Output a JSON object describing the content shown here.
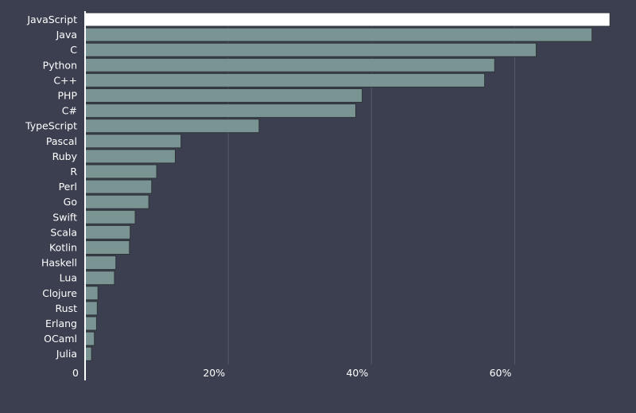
{
  "chart_data": {
    "type": "bar",
    "orientation": "horizontal",
    "title": "",
    "xlabel": "",
    "ylabel": "",
    "xlim": [
      0,
      73.5
    ],
    "x_ticks": [
      0,
      20,
      40,
      60
    ],
    "x_tick_labels": [
      "0",
      "20%",
      "40%",
      "60%"
    ],
    "grid": true,
    "categories": [
      "JavaScript",
      "Java",
      "C",
      "Python",
      "C++",
      "PHP",
      "C#",
      "TypeScript",
      "Pascal",
      "Ruby",
      "R",
      "Perl",
      "Go",
      "Swift",
      "Scala",
      "Kotlin",
      "Haskell",
      "Lua",
      "Clojure",
      "Rust",
      "Erlang",
      "OCaml",
      "Julia"
    ],
    "values": [
      73.3,
      70.8,
      63.0,
      57.2,
      55.8,
      38.7,
      37.8,
      24.3,
      13.4,
      12.6,
      10.0,
      9.3,
      8.9,
      7.0,
      6.3,
      6.2,
      4.3,
      4.1,
      1.8,
      1.7,
      1.6,
      1.3,
      0.9
    ],
    "colors": {
      "background": "#3b3f50",
      "bar": "#7a9494",
      "bar_stroke": "#2e3436",
      "highlight_bar": "#ffffff",
      "grid": "#555b6b",
      "axis": "#ffffff",
      "text": "#ffffff"
    }
  }
}
